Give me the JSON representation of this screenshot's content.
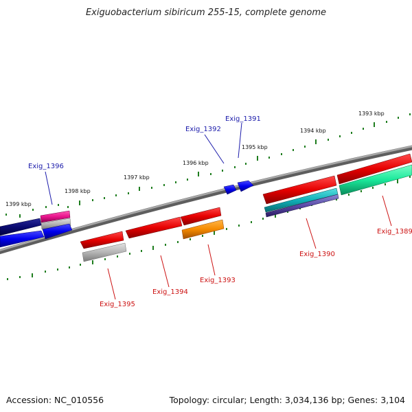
{
  "title": "Exiguobacterium sibiricum 255-15, complete genome",
  "footer": {
    "accession": "Accession: NC_010556",
    "topology": "Topology: circular; Length: 3,034,136 bp; Genes: 3,104"
  },
  "colors": {
    "backbone": "#7a7a7a",
    "ticks": "#1e7d1e",
    "forward_label": "#1a1aaa",
    "reverse_label": "#cc1111"
  },
  "kbp_labels": [
    "1399 kbp",
    "1398 kbp",
    "1397 kbp",
    "1396 kbp",
    "1395 kbp",
    "1394 kbp",
    "1393 kbp"
  ],
  "gene_labels": {
    "exig_1396": "Exig_1396",
    "exig_1392": "Exig_1392",
    "exig_1391": "Exig_1391",
    "exig_1395": "Exig_1395",
    "exig_1394": "Exig_1394",
    "exig_1393": "Exig_1393",
    "exig_1390": "Exig_1390",
    "exig_1389": "Exig_1389"
  }
}
